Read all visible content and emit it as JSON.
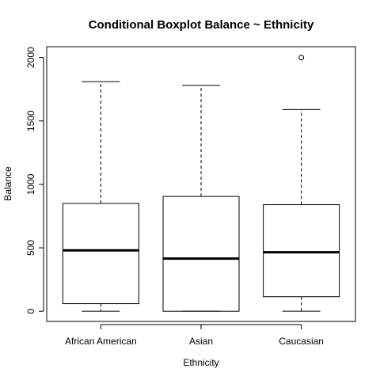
{
  "chart_data": {
    "type": "boxplot",
    "title": "Conditional Boxplot Balance ~ Ethnicity",
    "xlabel": "Ethnicity",
    "ylabel": "Balance",
    "ylim": [
      -80,
      2085
    ],
    "yticks": [
      0,
      500,
      1000,
      1500,
      2000
    ],
    "grid": false,
    "categories": [
      "African American",
      "Asian",
      "Caucasian"
    ],
    "boxes": [
      {
        "category": "African American",
        "whisker_low": 0,
        "q1": 60,
        "median": 480,
        "q3": 850,
        "whisker_high": 1810,
        "outliers": []
      },
      {
        "category": "Asian",
        "whisker_low": 0,
        "q1": 0,
        "median": 415,
        "q3": 905,
        "whisker_high": 1780,
        "outliers": []
      },
      {
        "category": "Caucasian",
        "whisker_low": 0,
        "q1": 115,
        "median": 465,
        "q3": 840,
        "whisker_high": 1590,
        "outliers": [
          1999
        ]
      }
    ]
  }
}
